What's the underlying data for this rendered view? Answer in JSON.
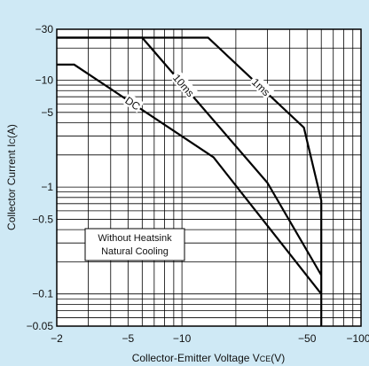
{
  "chart_data": {
    "type": "line",
    "xscale": "log",
    "yscale": "log",
    "xlim": [
      -2,
      -100
    ],
    "ylim": [
      -0.05,
      -30
    ],
    "xlabel": "Collector-Emitter Voltage V",
    "xlabel_sub": "CE",
    "xlabel_unit": "(V)",
    "ylabel": "Collector Current I",
    "ylabel_sub": "C",
    "ylabel_unit": "(A)",
    "x_ticks": [
      {
        "value": -2,
        "label": "−2"
      },
      {
        "value": -5,
        "label": "−5"
      },
      {
        "value": -10,
        "label": "−10"
      },
      {
        "value": -50,
        "label": "−50"
      },
      {
        "value": -100,
        "label": "−100"
      }
    ],
    "y_ticks": [
      {
        "value": -30,
        "label": "−30"
      },
      {
        "value": -10,
        "label": "−10"
      },
      {
        "value": -5,
        "label": "−5"
      },
      {
        "value": -1,
        "label": "−1"
      },
      {
        "value": -0.5,
        "label": "−0.5"
      },
      {
        "value": -0.1,
        "label": "−0.1"
      },
      {
        "value": -0.05,
        "label": "−0.05"
      }
    ],
    "grid": true,
    "series": [
      {
        "name": "1ms",
        "points": [
          [
            -2,
            -25
          ],
          [
            -14,
            -25
          ],
          [
            -48,
            -3.6
          ],
          [
            -60,
            -0.75
          ],
          [
            -60,
            -0.05
          ]
        ]
      },
      {
        "name": "10ms",
        "points": [
          [
            -2,
            -25
          ],
          [
            -6,
            -25
          ],
          [
            -30,
            -1.1
          ],
          [
            -60,
            -0.15
          ]
        ]
      },
      {
        "name": "DC",
        "points": [
          [
            -2,
            -14
          ],
          [
            -2.5,
            -14
          ],
          [
            -15,
            -1.9
          ],
          [
            -60,
            -0.1
          ]
        ]
      }
    ],
    "annotation": {
      "lines": [
        "Without Heatsink",
        "Natural Cooling"
      ]
    }
  }
}
